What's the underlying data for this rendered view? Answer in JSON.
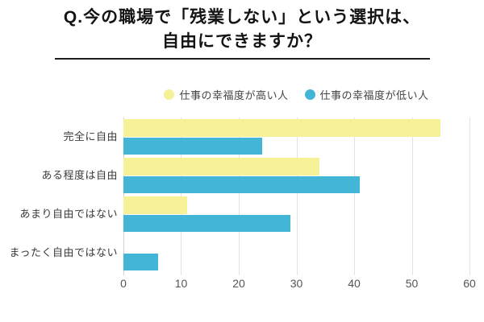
{
  "title": {
    "line1": "Q.今の職場で「残業しない」という選択は、",
    "line2": "自由にできますか？"
  },
  "chart_data": {
    "type": "bar",
    "orientation": "horizontal",
    "title": "Q.今の職場で「残業しない」という選択は、自由にできますか？",
    "categories": [
      "完全に自由",
      "ある程度は自由",
      "あまり自由ではない",
      "まったく自由ではない"
    ],
    "series": [
      {
        "name": "仕事の幸福度が高い人",
        "color": "#F6F096",
        "values": [
          55,
          34,
          11,
          0
        ]
      },
      {
        "name": "仕事の幸福度が低い人",
        "color": "#43B5D6",
        "values": [
          24,
          41,
          29,
          6
        ]
      }
    ],
    "xlim": [
      0,
      60
    ],
    "xticks": [
      0,
      10,
      20,
      30,
      40,
      50,
      60
    ],
    "grid": true,
    "legend_position": "top"
  },
  "colors": {
    "background": "#ffffff",
    "grid": "#e3e3e3",
    "axis_line": "#d2d2d2",
    "axis_text": "#555555",
    "category_text": "#3b3b3b",
    "title_text": "#141414",
    "title_underline": "#1e1e1e"
  }
}
